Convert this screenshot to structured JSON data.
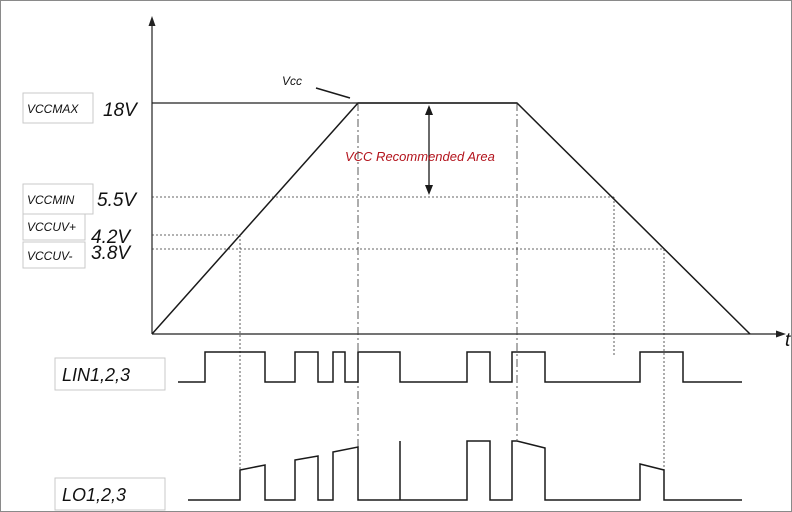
{
  "labels": {
    "vcc": "Vcc",
    "vccmax_name": "VCCMAX",
    "vccmax_value": "18V",
    "vccmin_name": "VCCMIN",
    "vccmin_value": "5.5V",
    "vccuv_plus_name": "VCCUV+",
    "vccuv_plus_value": "4.2V",
    "vccuv_minus_name": "VCCUV-",
    "vccuv_minus_value": "3.8V",
    "recommended_area": "VCC Recommended Area",
    "time_axis": "t",
    "lin_signal": "LIN1,2,3",
    "lo_signal": "LO1,2,3"
  },
  "colors": {
    "annotation": "#b3141d",
    "line": "#1a1a1a"
  }
}
